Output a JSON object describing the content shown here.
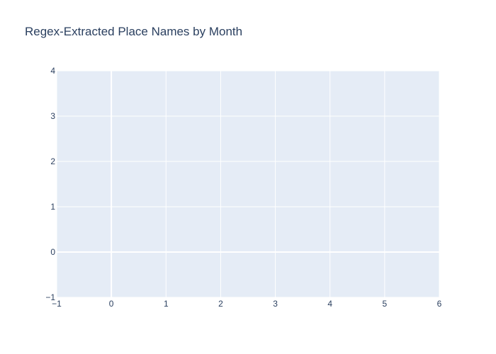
{
  "chart_data": {
    "type": "scatter",
    "title": "Regex-Extracted Place Names by Month",
    "xlabel": "",
    "ylabel": "",
    "xlim": [
      -1,
      6
    ],
    "ylim": [
      -1,
      4
    ],
    "x_ticks": [
      -1,
      0,
      1,
      2,
      3,
      4,
      5,
      6
    ],
    "y_ticks": [
      -1,
      0,
      1,
      2,
      3,
      4
    ],
    "x_tick_labels": [
      "−1",
      "0",
      "1",
      "2",
      "3",
      "4",
      "5",
      "6"
    ],
    "y_tick_labels": [
      "−1",
      "0",
      "1",
      "2",
      "3",
      "4"
    ],
    "series": [],
    "grid": true,
    "legend": "none",
    "colors": {
      "plot_background": "#e5ecf6",
      "grid": "#ffffff",
      "text": "#2a3f5f",
      "paper_background": "#ffffff"
    }
  }
}
